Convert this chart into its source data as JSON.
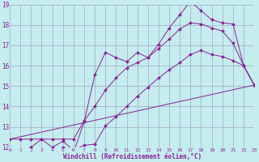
{
  "bg_color": "#c5ecee",
  "grid_color": "#9999bb",
  "line_color": "#882299",
  "xlabel": "Windchill (Refroidissement éolien,°C)",
  "xlim_min": 0,
  "xlim_max": 23,
  "ylim_min": 12,
  "ylim_max": 19,
  "yticks": [
    12,
    13,
    14,
    15,
    16,
    17,
    18,
    19
  ],
  "xticks": [
    0,
    1,
    2,
    3,
    4,
    5,
    6,
    7,
    8,
    9,
    10,
    11,
    12,
    13,
    14,
    15,
    16,
    17,
    18,
    19,
    20,
    21,
    22,
    23
  ],
  "series": [
    {
      "x": [
        2,
        3,
        4,
        5,
        6,
        7,
        8,
        9,
        10,
        11,
        12,
        13,
        14,
        15,
        16,
        17,
        18,
        19,
        20,
        21,
        22,
        23
      ],
      "y": [
        12.0,
        11.85,
        11.85,
        12.0,
        11.75,
        13.25,
        15.55,
        16.65,
        16.4,
        16.2,
        16.65,
        16.4,
        17.05,
        17.85,
        18.5,
        19.15,
        18.7,
        18.25,
        18.1,
        18.05,
        16.0,
        15.05
      ],
      "markers": true
    },
    {
      "x": [
        0,
        1,
        2,
        3,
        4,
        5,
        6,
        7,
        8,
        9,
        10,
        11,
        12,
        13,
        14,
        15,
        16,
        17,
        18,
        19,
        20,
        21,
        22,
        23
      ],
      "y": [
        12.4,
        12.4,
        12.4,
        12.4,
        12.4,
        12.4,
        12.4,
        13.3,
        14.0,
        14.8,
        15.4,
        15.9,
        16.15,
        16.4,
        16.85,
        17.3,
        17.8,
        18.1,
        18.05,
        17.85,
        17.7,
        17.1,
        16.0,
        15.05
      ],
      "markers": true
    },
    {
      "x": [
        2,
        3,
        4,
        5,
        6,
        7,
        8,
        9,
        10,
        11,
        12,
        13,
        14,
        15,
        16,
        17,
        18,
        19,
        20,
        21,
        22,
        23
      ],
      "y": [
        12.0,
        12.4,
        12.0,
        12.3,
        11.85,
        12.1,
        12.15,
        13.05,
        13.5,
        14.0,
        14.5,
        14.95,
        15.4,
        15.8,
        16.15,
        16.55,
        16.75,
        16.55,
        16.45,
        16.25,
        16.0,
        15.05
      ],
      "markers": true
    },
    {
      "x": [
        0,
        23
      ],
      "y": [
        12.4,
        15.05
      ],
      "markers": false
    }
  ]
}
